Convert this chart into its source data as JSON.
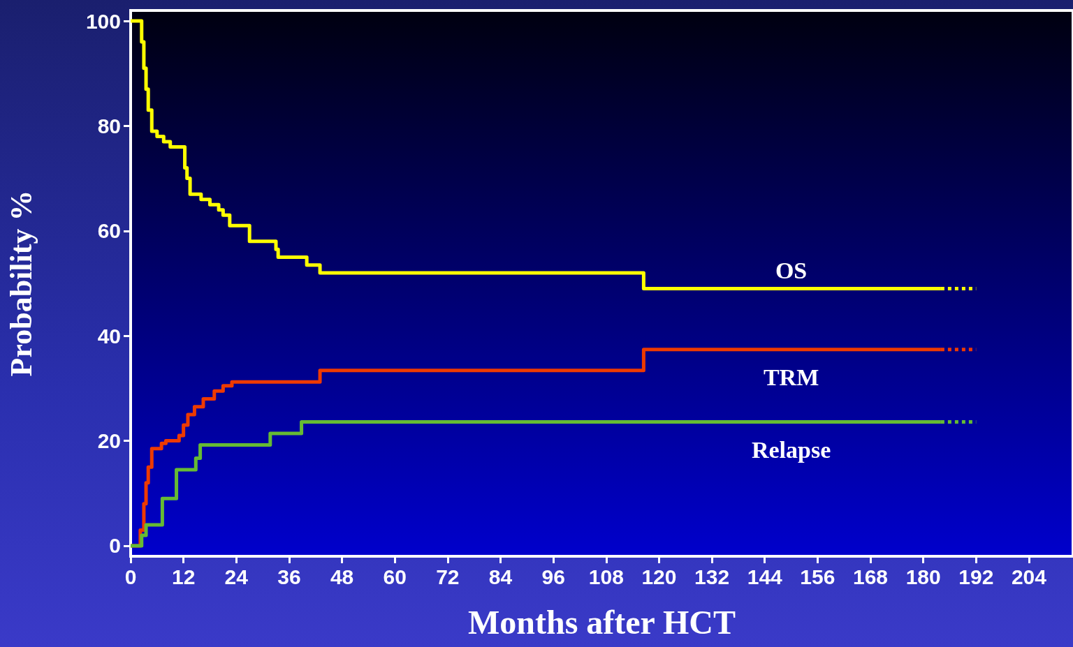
{
  "chart_data": {
    "type": "step",
    "xlabel": "Months after HCT",
    "ylabel": "Probability %",
    "xlim": [
      0,
      214
    ],
    "xticks": [
      0,
      12,
      24,
      36,
      48,
      60,
      72,
      84,
      96,
      108,
      120,
      132,
      144,
      156,
      168,
      180,
      192,
      204
    ],
    "ylim": [
      -2,
      102
    ],
    "yticks": [
      0,
      20,
      40,
      60,
      80,
      100
    ],
    "grid": false,
    "legend": false,
    "marker": "none",
    "line_style": "solid",
    "series": [
      {
        "name": "OS",
        "color": "#ffff00",
        "x": [
          0,
          2.5,
          3,
          3.5,
          4,
          4.8,
          6,
          7.5,
          9,
          12.3,
          12.8,
          13.5,
          16,
          18,
          20,
          21,
          22.5,
          27,
          33,
          33.5,
          35,
          40,
          43,
          116.5,
          184
        ],
        "values": [
          100,
          96,
          91,
          87,
          83,
          79,
          78,
          77,
          76,
          72,
          70,
          67,
          66,
          65,
          64,
          63,
          61,
          58,
          56.5,
          55,
          55,
          53.5,
          52,
          49,
          49
        ]
      },
      {
        "color": "#ffff00",
        "line_style": "dotted",
        "x": [
          184,
          192
        ],
        "values": [
          49,
          49
        ]
      },
      {
        "name": "TRM",
        "color": "#ee3a00",
        "x": [
          0,
          2.2,
          3,
          3.5,
          4,
          4.8,
          7,
          8,
          11,
          12,
          13,
          14.5,
          16.5,
          19,
          21,
          23,
          43,
          116.5,
          184
        ],
        "values": [
          0,
          3,
          8,
          12,
          15,
          18.5,
          19.5,
          20,
          21,
          23,
          25,
          26.5,
          28,
          29.5,
          30.5,
          31.2,
          33.4,
          37.4,
          37.4
        ]
      },
      {
        "color": "#ee3a00",
        "line_style": "dotted",
        "x": [
          184,
          192
        ],
        "values": [
          37.4,
          37.4
        ]
      },
      {
        "name": "Relapse",
        "color": "#66bb33",
        "x": [
          0,
          2.5,
          3.5,
          7.2,
          10.4,
          14.8,
          15.8,
          31.7,
          38.8,
          184
        ],
        "values": [
          0,
          2,
          4,
          9,
          14.5,
          16.7,
          19.2,
          21.4,
          23.6,
          23.6
        ]
      },
      {
        "color": "#66bb33",
        "line_style": "dotted",
        "x": [
          184,
          192
        ],
        "values": [
          23.6,
          23.6
        ]
      }
    ]
  }
}
